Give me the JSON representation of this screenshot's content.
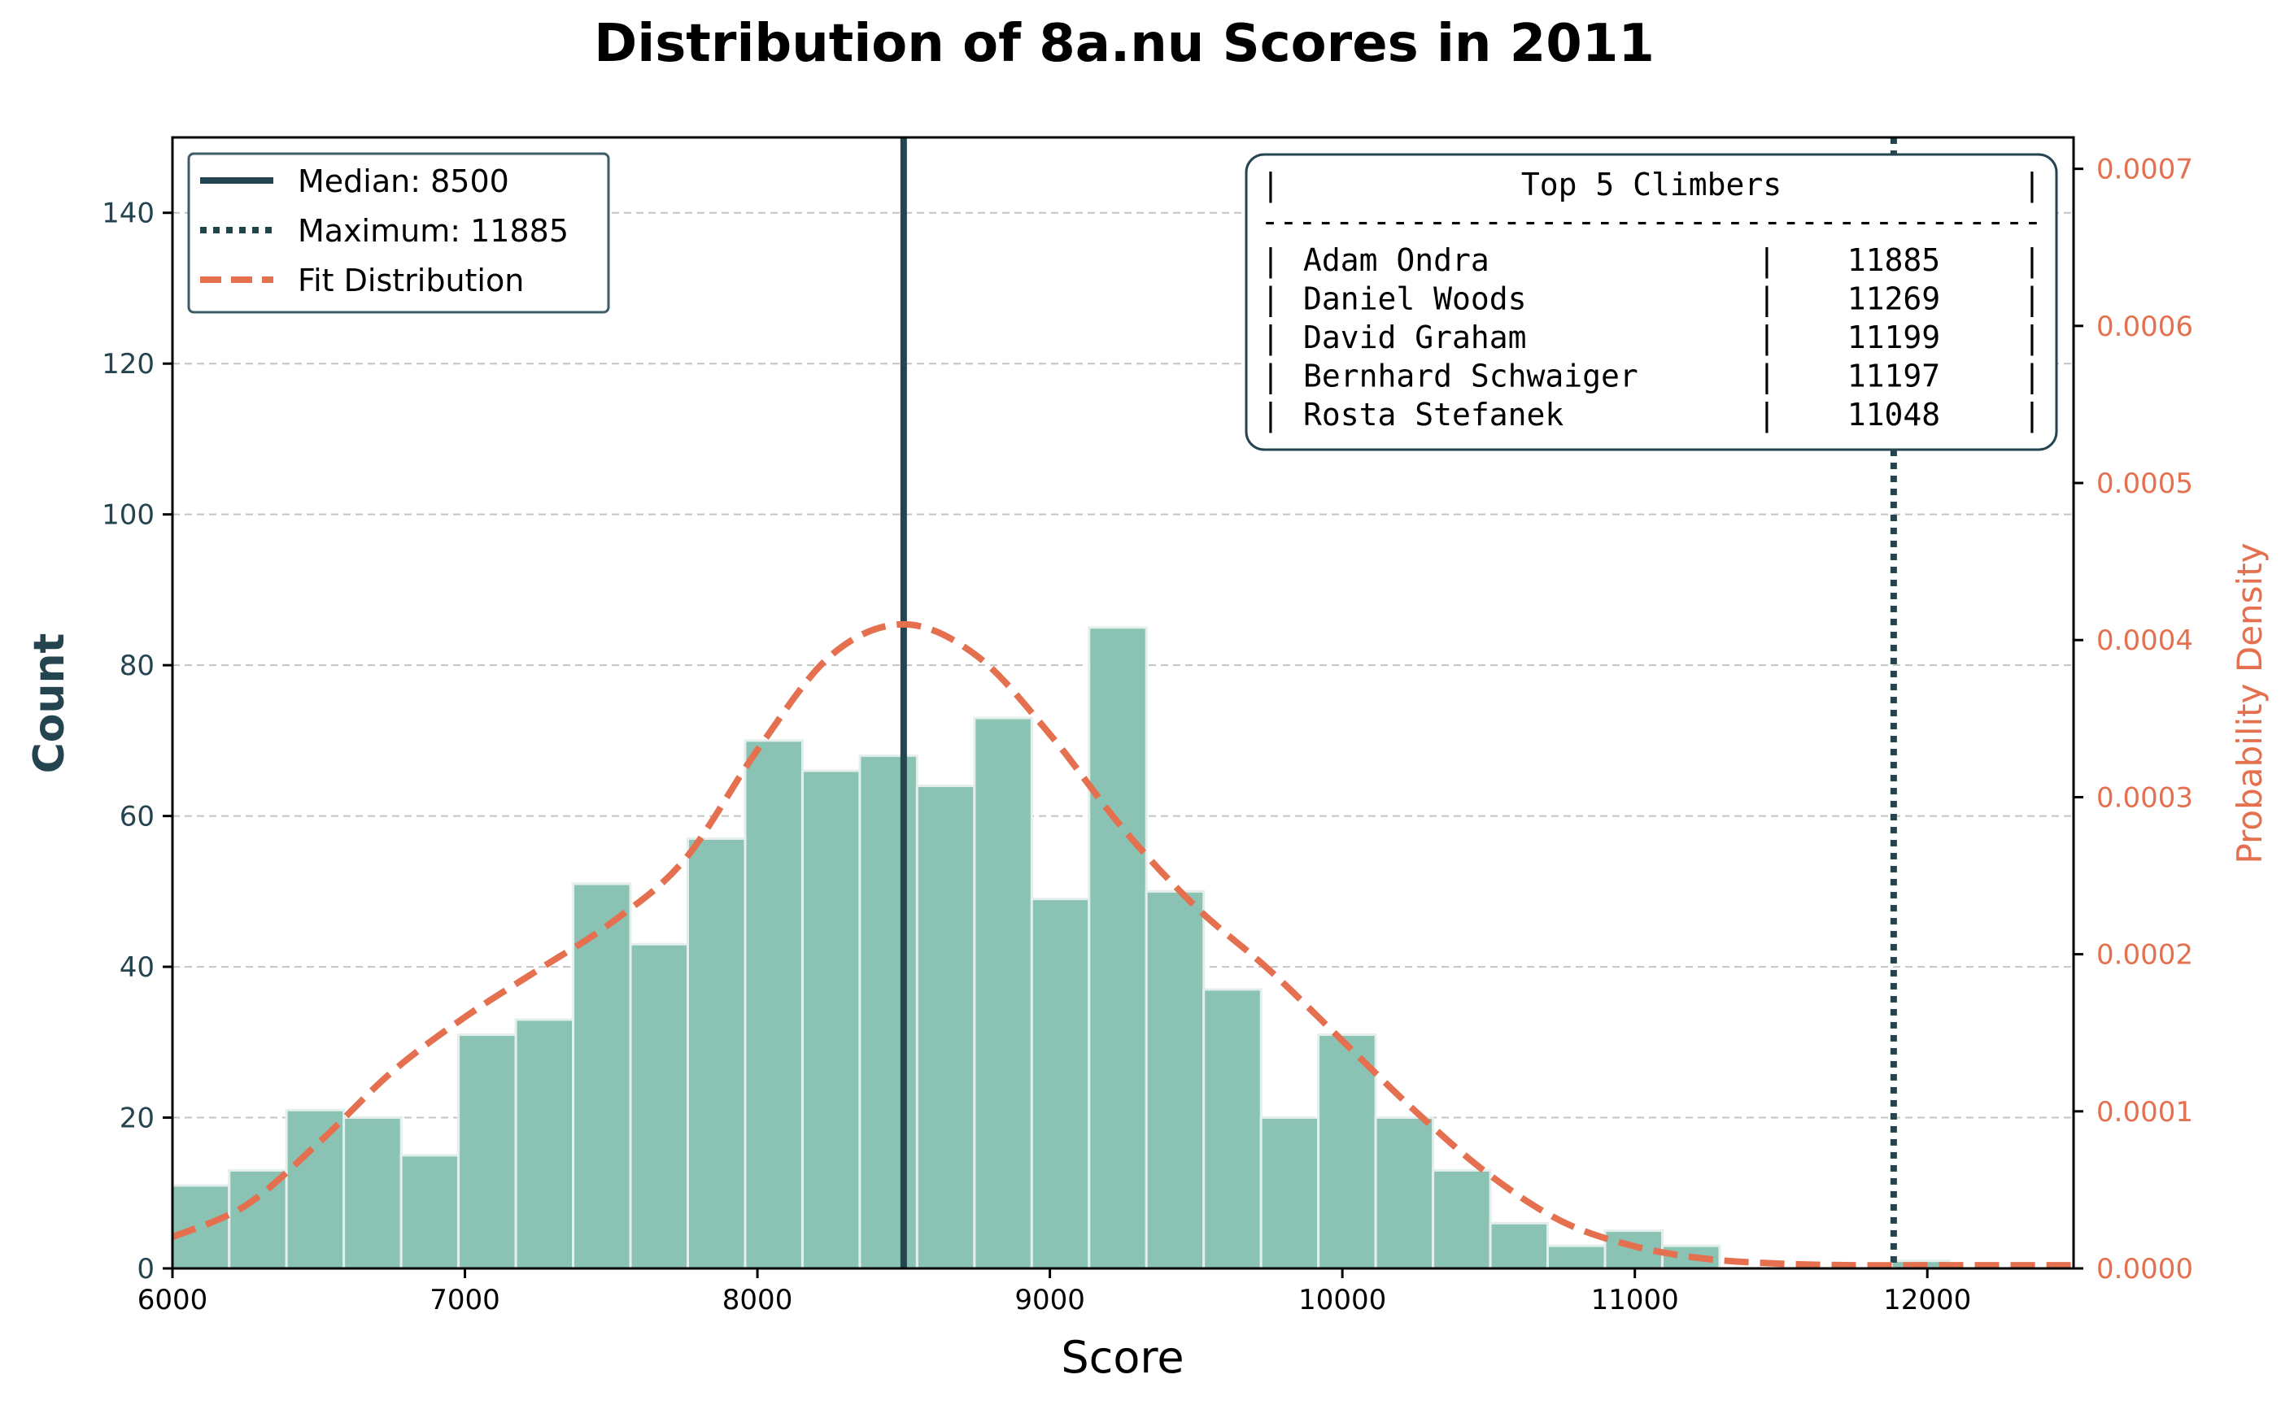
{
  "chart_data": {
    "type": "bar",
    "title": "Distribution of 8a.nu Scores in 2011",
    "xlabel": "Score",
    "ylabel": "Count",
    "y2label": "Probability Density",
    "xlim": [
      6000,
      12500
    ],
    "ylim": [
      0,
      150
    ],
    "y2lim": [
      0,
      0.00072
    ],
    "xticks": [
      "6000",
      "7000",
      "8000",
      "9000",
      "10000",
      "11000",
      "12000"
    ],
    "yticks": [
      "0",
      "20",
      "40",
      "60",
      "80",
      "100",
      "120",
      "140"
    ],
    "y2ticks": [
      "0.0000",
      "0.0001",
      "0.0002",
      "0.0003",
      "0.0004",
      "0.0005",
      "0.0006",
      "0.0007"
    ],
    "grid": "y-dashed",
    "bins": {
      "start": 5998,
      "width": 196,
      "counts": [
        11,
        13,
        21,
        20,
        15,
        31,
        33,
        51,
        43,
        57,
        70,
        66,
        68,
        64,
        73,
        49,
        85,
        50,
        37,
        20,
        31,
        20,
        13,
        6,
        3,
        5,
        3,
        0,
        0,
        0,
        1
      ]
    },
    "fit_curve": {
      "name": "Fit Distribution",
      "x": [
        6000,
        6250,
        6500,
        6750,
        7000,
        7250,
        7500,
        7750,
        8000,
        8250,
        8500,
        8750,
        9000,
        9250,
        9500,
        9750,
        10000,
        10250,
        10500,
        10750,
        11000,
        11250,
        11500,
        11750,
        12000,
        12250,
        12500
      ],
      "y": [
        2e-05,
        4e-05,
        8e-05,
        0.000125,
        0.00016,
        0.00019,
        0.00022,
        0.00026,
        0.00033,
        0.00039,
        0.00041,
        0.00039,
        0.00034,
        0.00028,
        0.00023,
        0.00019,
        0.000145,
        0.0001,
        6e-05,
        3e-05,
        1.4e-05,
        6e-06,
        3e-06,
        2e-06,
        2e-06,
        2e-06,
        2e-06
      ]
    },
    "median": 8500,
    "maximum": 11885,
    "legend": {
      "position": "top-left",
      "entries": [
        "Median: 8500",
        "Maximum: 11885",
        "Fit Distribution"
      ]
    },
    "top_climbers": {
      "header": "Top 5 Climbers",
      "rows": [
        {
          "name": "Adam Ondra",
          "score": "11885"
        },
        {
          "name": "Daniel Woods",
          "score": "11269"
        },
        {
          "name": "David Graham",
          "score": "11199"
        },
        {
          "name": "Bernhard Schwaiger",
          "score": "11197"
        },
        {
          "name": "Rosta Stefanek",
          "score": "11048"
        }
      ]
    },
    "colors": {
      "bar": "#8ac2b3",
      "bar_edge": "#e4efec",
      "median": "#24444f",
      "fit": "#e4704f",
      "left_axis_text": "#24444f",
      "right_axis_text": "#e4704f",
      "grid": "#c4c4c4"
    }
  }
}
